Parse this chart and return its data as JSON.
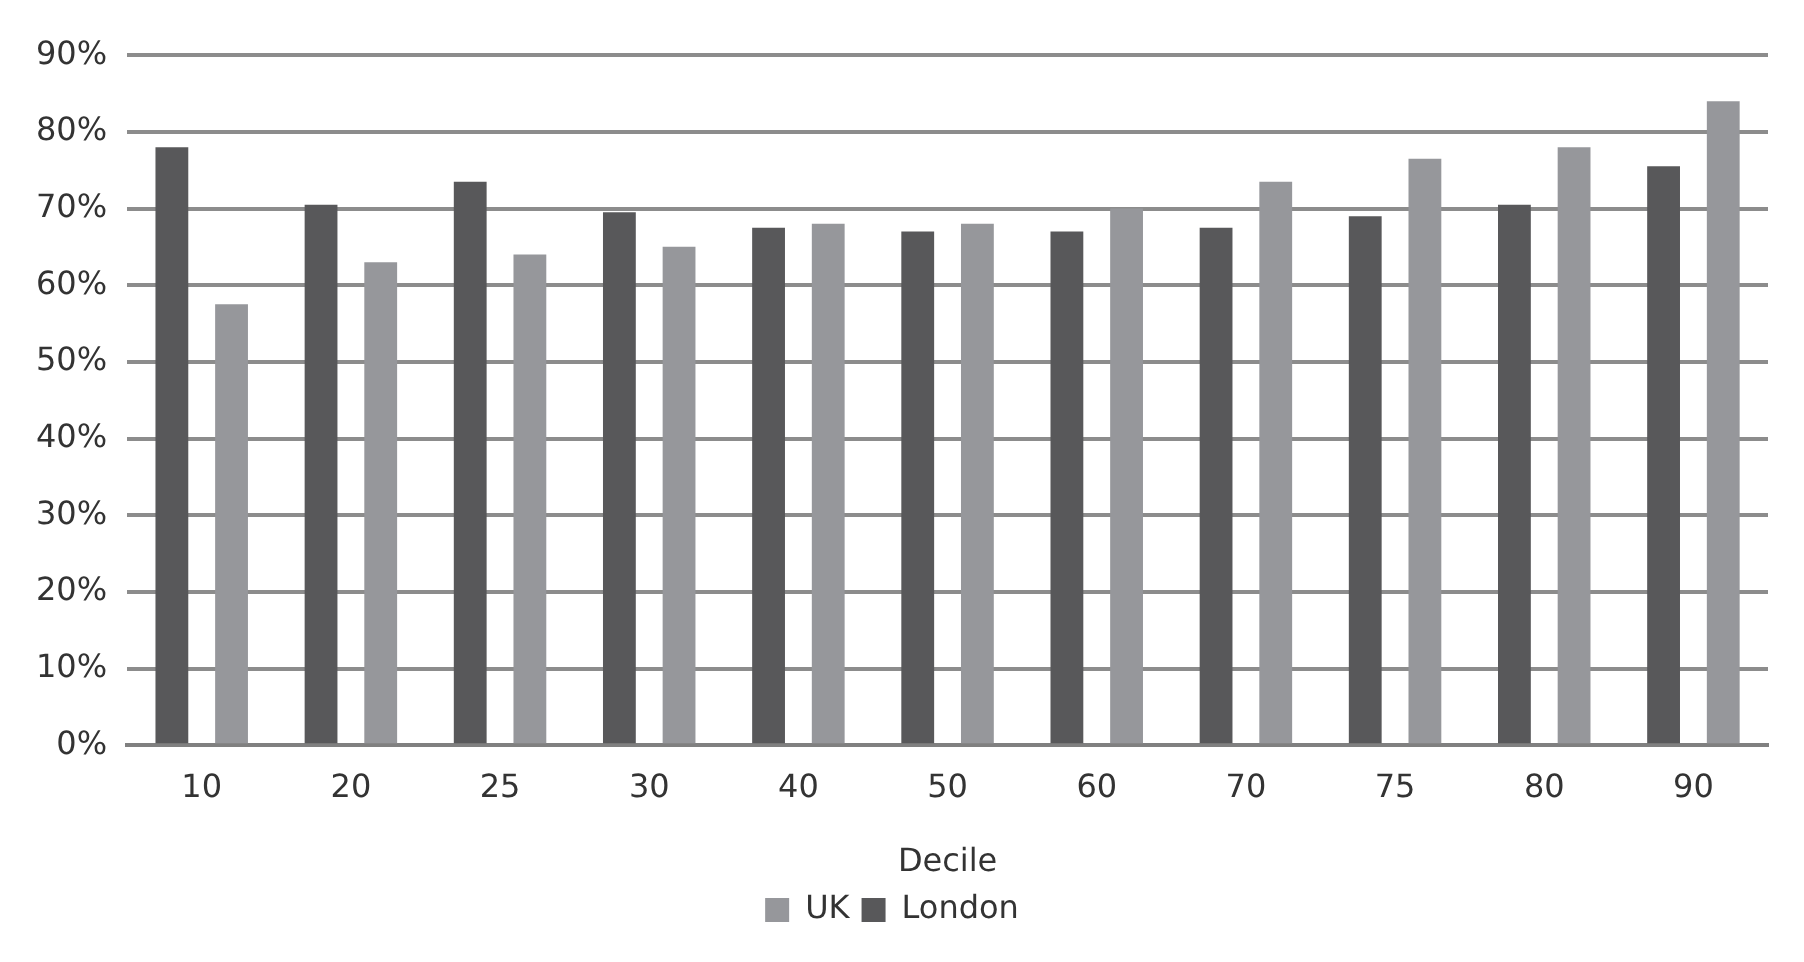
{
  "chart_data": {
    "type": "bar",
    "xlabel": "Decile",
    "categories": [
      "10",
      "20",
      "25",
      "30",
      "40",
      "50",
      "60",
      "70",
      "75",
      "80",
      "90"
    ],
    "series": [
      {
        "name": "London",
        "color": "#58585a",
        "values": [
          78,
          70.5,
          73.5,
          69.5,
          67.5,
          67,
          67,
          67.5,
          69,
          70.5,
          75.5
        ]
      },
      {
        "name": "UK",
        "color": "#96979b",
        "values": [
          57.5,
          63,
          64,
          65,
          68,
          68,
          70,
          73.5,
          76.5,
          78,
          84
        ]
      }
    ],
    "ylim": [
      0,
      90
    ],
    "yticks": [
      {
        "value": 0,
        "label": "0%"
      },
      {
        "value": 10,
        "label": "10%"
      },
      {
        "value": 20,
        "label": "20%"
      },
      {
        "value": 30,
        "label": "30%"
      },
      {
        "value": 40,
        "label": "40%"
      },
      {
        "value": 50,
        "label": "50%"
      },
      {
        "value": 60,
        "label": "60%"
      },
      {
        "value": 70,
        "label": "70%"
      },
      {
        "value": 80,
        "label": "80%"
      },
      {
        "value": 90,
        "label": "90%"
      }
    ],
    "grid": "y",
    "legend": "bottom"
  }
}
